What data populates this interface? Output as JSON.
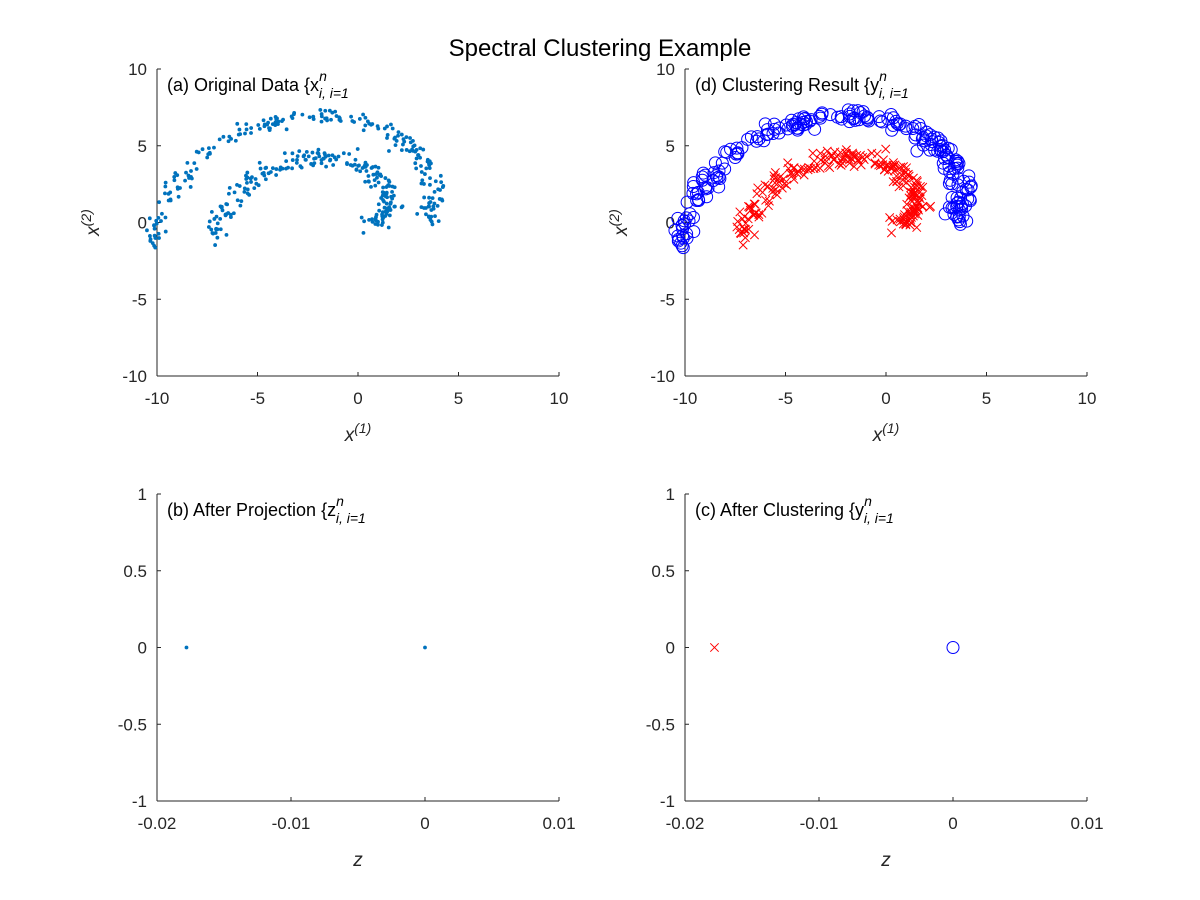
{
  "figure": {
    "title": "Spectral Clustering Example"
  },
  "colors": {
    "data": "#0072BD",
    "cluster_blue": "#0000FF",
    "cluster_red": "#FF0000",
    "axes": "#262626"
  },
  "chart_data": [
    {
      "id": "a",
      "type": "scatter",
      "panel_label": "(a) Original Data {x",
      "panel_label_sub": "i",
      "panel_label_range": "i=1",
      "panel_label_sup": "n",
      "xlabel": "x",
      "xlabel_sup": "(1)",
      "ylabel": "x",
      "ylabel_sup": "(2)",
      "xlim": [
        -10,
        10
      ],
      "ylim": [
        -10,
        10
      ],
      "xticks": [
        "-10",
        "-5",
        "0",
        "5",
        "10"
      ],
      "yticks": [
        "10",
        "5",
        "0",
        "-5",
        "-10"
      ],
      "marker": "dot",
      "spiral": {
        "inner_a_end": 3.3,
        "outer_a_end": 6.45,
        "inner_rmax": 7.2,
        "outer_rmax": 10.3,
        "rmin": 0.6,
        "n_per_arm": 225,
        "noise": 0.28
      }
    },
    {
      "id": "d",
      "type": "scatter",
      "panel_label": "(d) Clustering Result {y",
      "panel_label_sub": "i",
      "panel_label_range": "i=1",
      "panel_label_sup": "n",
      "xlabel": "x",
      "xlabel_sup": "(1)",
      "ylabel": "x",
      "ylabel_sup": "(2)",
      "xlim": [
        -10,
        10
      ],
      "ylim": [
        -10,
        10
      ],
      "xticks": [
        "-10",
        "-5",
        "0",
        "5",
        "10"
      ],
      "yticks": [
        "10",
        "5",
        "0",
        "-5",
        "-10"
      ],
      "series": [
        {
          "marker": "x",
          "color": "#FF0000"
        },
        {
          "marker": "circle",
          "color": "#0000FF"
        }
      ]
    },
    {
      "id": "b",
      "type": "scatter",
      "panel_label": "(b) After Projection {z",
      "panel_label_sub": "i",
      "panel_label_range": "i=1",
      "panel_label_sup": "n",
      "xlabel": "z",
      "xlim": [
        -0.02,
        0.01
      ],
      "ylim": [
        -1,
        1
      ],
      "xticks": [
        "-0.02",
        "-0.01",
        "0",
        "0.01"
      ],
      "yticks": [
        "1",
        "0.5",
        "0",
        "-0.5",
        "-1"
      ],
      "points": [
        {
          "x": -0.0178,
          "y": 0,
          "marker": "dot",
          "color": "#0072BD"
        },
        {
          "x": 0.0,
          "y": 0,
          "marker": "dot",
          "color": "#0072BD"
        }
      ]
    },
    {
      "id": "c",
      "type": "scatter",
      "panel_label": "(c) After Clustering {y",
      "panel_label_sub": "i",
      "panel_label_range": "i=1",
      "panel_label_sup": "n",
      "xlabel": "z",
      "xlim": [
        -0.02,
        0.01
      ],
      "ylim": [
        -1,
        1
      ],
      "xticks": [
        "-0.02",
        "-0.01",
        "0",
        "0.01"
      ],
      "yticks": [
        "1",
        "0.5",
        "0",
        "-0.5",
        "-1"
      ],
      "points": [
        {
          "x": -0.0178,
          "y": 0,
          "marker": "x",
          "color": "#FF0000"
        },
        {
          "x": 0.0,
          "y": 0,
          "marker": "circle",
          "color": "#0000FF"
        }
      ]
    }
  ]
}
